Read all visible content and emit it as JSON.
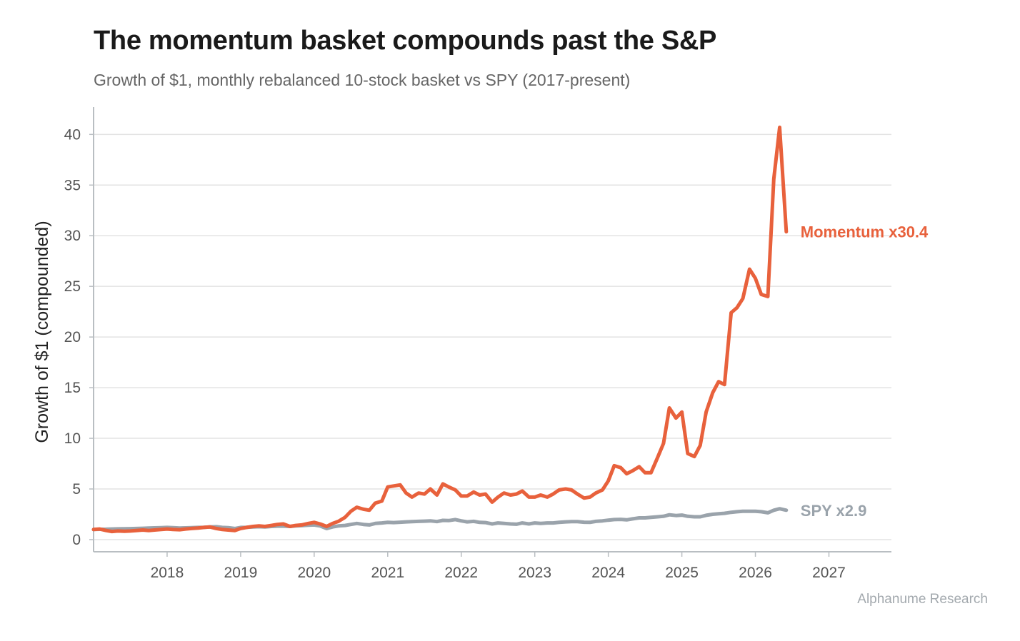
{
  "title": "The momentum basket compounds past the S&P",
  "subtitle": "Growth of $1, monthly rebalanced 10-stock basket vs SPY (2017-present)",
  "source": "Alphanume Research",
  "colors": {
    "momentum": "#e8613c",
    "spy": "#9aa3ab",
    "grid": "#e3e3e3",
    "axis": "#b9bec2"
  },
  "chart_data": {
    "type": "line",
    "title": "The momentum basket compounds past the S&P",
    "subtitle": "Growth of $1, monthly rebalanced 10-stock basket vs SPY (2017-present)",
    "xlabel": "",
    "ylabel": "Growth of $1 (compounded)",
    "xlim": [
      2017.0,
      2027.85
    ],
    "ylim": [
      -1.2,
      42.7
    ],
    "x_ticks": [
      2018,
      2019,
      2020,
      2021,
      2022,
      2023,
      2024,
      2025,
      2026,
      2027
    ],
    "y_ticks": [
      0,
      5,
      10,
      15,
      20,
      25,
      30,
      35,
      40
    ],
    "grid": "horizontal",
    "legend": "none (end-of-line labels)",
    "series": [
      {
        "key": "momentum",
        "label": "Momentum x30.4",
        "x": [
          2017.0,
          2017.08,
          2017.17,
          2017.25,
          2017.33,
          2017.42,
          2017.5,
          2017.58,
          2017.67,
          2017.75,
          2017.83,
          2017.92,
          2018.0,
          2018.08,
          2018.17,
          2018.25,
          2018.33,
          2018.42,
          2018.5,
          2018.58,
          2018.67,
          2018.75,
          2018.83,
          2018.92,
          2019.0,
          2019.08,
          2019.17,
          2019.25,
          2019.33,
          2019.42,
          2019.5,
          2019.58,
          2019.67,
          2019.75,
          2019.83,
          2019.92,
          2020.0,
          2020.08,
          2020.17,
          2020.25,
          2020.33,
          2020.42,
          2020.5,
          2020.58,
          2020.67,
          2020.75,
          2020.83,
          2020.92,
          2021.0,
          2021.08,
          2021.17,
          2021.25,
          2021.33,
          2021.42,
          2021.5,
          2021.58,
          2021.67,
          2021.75,
          2021.83,
          2021.92,
          2022.0,
          2022.08,
          2022.17,
          2022.25,
          2022.33,
          2022.42,
          2022.5,
          2022.58,
          2022.67,
          2022.75,
          2022.83,
          2022.92,
          2023.0,
          2023.08,
          2023.17,
          2023.25,
          2023.33,
          2023.42,
          2023.5,
          2023.58,
          2023.67,
          2023.75,
          2023.83,
          2023.92,
          2024.0,
          2024.08,
          2024.17,
          2024.25,
          2024.33,
          2024.42,
          2024.5,
          2024.58,
          2024.67,
          2024.75,
          2024.83,
          2024.92,
          2025.0,
          2025.08,
          2025.17,
          2025.25,
          2025.33,
          2025.42,
          2025.5,
          2025.58,
          2025.67,
          2025.75,
          2025.83,
          2025.92,
          2026.0,
          2026.08,
          2026.17,
          2026.25,
          2026.33,
          2026.42
        ],
        "y": [
          1.0,
          1.05,
          0.9,
          0.8,
          0.85,
          0.82,
          0.85,
          0.9,
          0.95,
          0.9,
          0.95,
          1.0,
          1.05,
          1.0,
          0.98,
          1.05,
          1.1,
          1.15,
          1.2,
          1.25,
          1.1,
          1.0,
          0.95,
          0.9,
          1.1,
          1.2,
          1.3,
          1.35,
          1.3,
          1.4,
          1.5,
          1.55,
          1.3,
          1.4,
          1.45,
          1.6,
          1.7,
          1.55,
          1.3,
          1.6,
          1.8,
          2.2,
          2.8,
          3.2,
          3.0,
          2.9,
          3.6,
          3.8,
          5.2,
          5.3,
          5.4,
          4.6,
          4.2,
          4.6,
          4.5,
          5.0,
          4.4,
          5.5,
          5.2,
          4.9,
          4.3,
          4.3,
          4.7,
          4.4,
          4.5,
          3.7,
          4.2,
          4.6,
          4.4,
          4.5,
          4.8,
          4.2,
          4.2,
          4.4,
          4.2,
          4.5,
          4.9,
          5.0,
          4.9,
          4.5,
          4.1,
          4.2,
          4.6,
          4.9,
          5.8,
          7.3,
          7.1,
          6.5,
          6.8,
          7.2,
          6.6,
          6.6,
          8.1,
          9.5,
          13.0,
          12.0,
          12.6,
          8.5,
          8.2,
          9.3,
          12.6,
          14.5,
          15.6,
          15.3,
          22.4,
          22.9,
          23.8,
          26.7,
          25.8,
          24.2,
          24.0,
          35.6,
          40.7,
          30.4
        ]
      },
      {
        "key": "spy",
        "label": "SPY x2.9",
        "x": [
          2017.0,
          2017.08,
          2017.17,
          2017.25,
          2017.33,
          2017.42,
          2017.5,
          2017.58,
          2017.67,
          2017.75,
          2017.83,
          2017.92,
          2018.0,
          2018.08,
          2018.17,
          2018.25,
          2018.33,
          2018.42,
          2018.5,
          2018.58,
          2018.67,
          2018.75,
          2018.83,
          2018.92,
          2019.0,
          2019.08,
          2019.17,
          2019.25,
          2019.33,
          2019.42,
          2019.5,
          2019.58,
          2019.67,
          2019.75,
          2019.83,
          2019.92,
          2020.0,
          2020.08,
          2020.17,
          2020.25,
          2020.33,
          2020.42,
          2020.5,
          2020.58,
          2020.67,
          2020.75,
          2020.83,
          2020.92,
          2021.0,
          2021.08,
          2021.17,
          2021.25,
          2021.33,
          2021.42,
          2021.5,
          2021.58,
          2021.67,
          2021.75,
          2021.83,
          2021.92,
          2022.0,
          2022.08,
          2022.17,
          2022.25,
          2022.33,
          2022.42,
          2022.5,
          2022.58,
          2022.67,
          2022.75,
          2022.83,
          2022.92,
          2023.0,
          2023.08,
          2023.17,
          2023.25,
          2023.33,
          2023.42,
          2023.5,
          2023.58,
          2023.67,
          2023.75,
          2023.83,
          2023.92,
          2024.0,
          2024.08,
          2024.17,
          2024.25,
          2024.33,
          2024.42,
          2024.5,
          2024.58,
          2024.67,
          2024.75,
          2024.83,
          2024.92,
          2025.0,
          2025.08,
          2025.17,
          2025.25,
          2025.33,
          2025.42,
          2025.5,
          2025.58,
          2025.67,
          2025.75,
          2025.83,
          2025.92,
          2026.0,
          2026.08,
          2026.17,
          2026.25,
          2026.33,
          2026.42
        ],
        "y": [
          1.0,
          1.02,
          1.03,
          1.05,
          1.06,
          1.07,
          1.08,
          1.1,
          1.12,
          1.14,
          1.16,
          1.18,
          1.2,
          1.18,
          1.15,
          1.16,
          1.18,
          1.2,
          1.22,
          1.25,
          1.27,
          1.2,
          1.18,
          1.1,
          1.2,
          1.22,
          1.25,
          1.27,
          1.25,
          1.3,
          1.33,
          1.33,
          1.3,
          1.35,
          1.38,
          1.42,
          1.45,
          1.35,
          1.1,
          1.25,
          1.35,
          1.4,
          1.5,
          1.6,
          1.5,
          1.45,
          1.6,
          1.65,
          1.7,
          1.68,
          1.72,
          1.75,
          1.78,
          1.8,
          1.82,
          1.85,
          1.78,
          1.9,
          1.88,
          1.98,
          1.85,
          1.75,
          1.8,
          1.7,
          1.68,
          1.55,
          1.65,
          1.6,
          1.55,
          1.52,
          1.65,
          1.55,
          1.65,
          1.6,
          1.65,
          1.65,
          1.7,
          1.75,
          1.78,
          1.78,
          1.72,
          1.7,
          1.8,
          1.85,
          1.92,
          1.98,
          2.0,
          1.95,
          2.05,
          2.15,
          2.15,
          2.2,
          2.25,
          2.3,
          2.45,
          2.38,
          2.42,
          2.3,
          2.25,
          2.25,
          2.4,
          2.5,
          2.55,
          2.6,
          2.7,
          2.75,
          2.8,
          2.8,
          2.8,
          2.75,
          2.65,
          2.9,
          3.05,
          2.9
        ]
      }
    ]
  }
}
